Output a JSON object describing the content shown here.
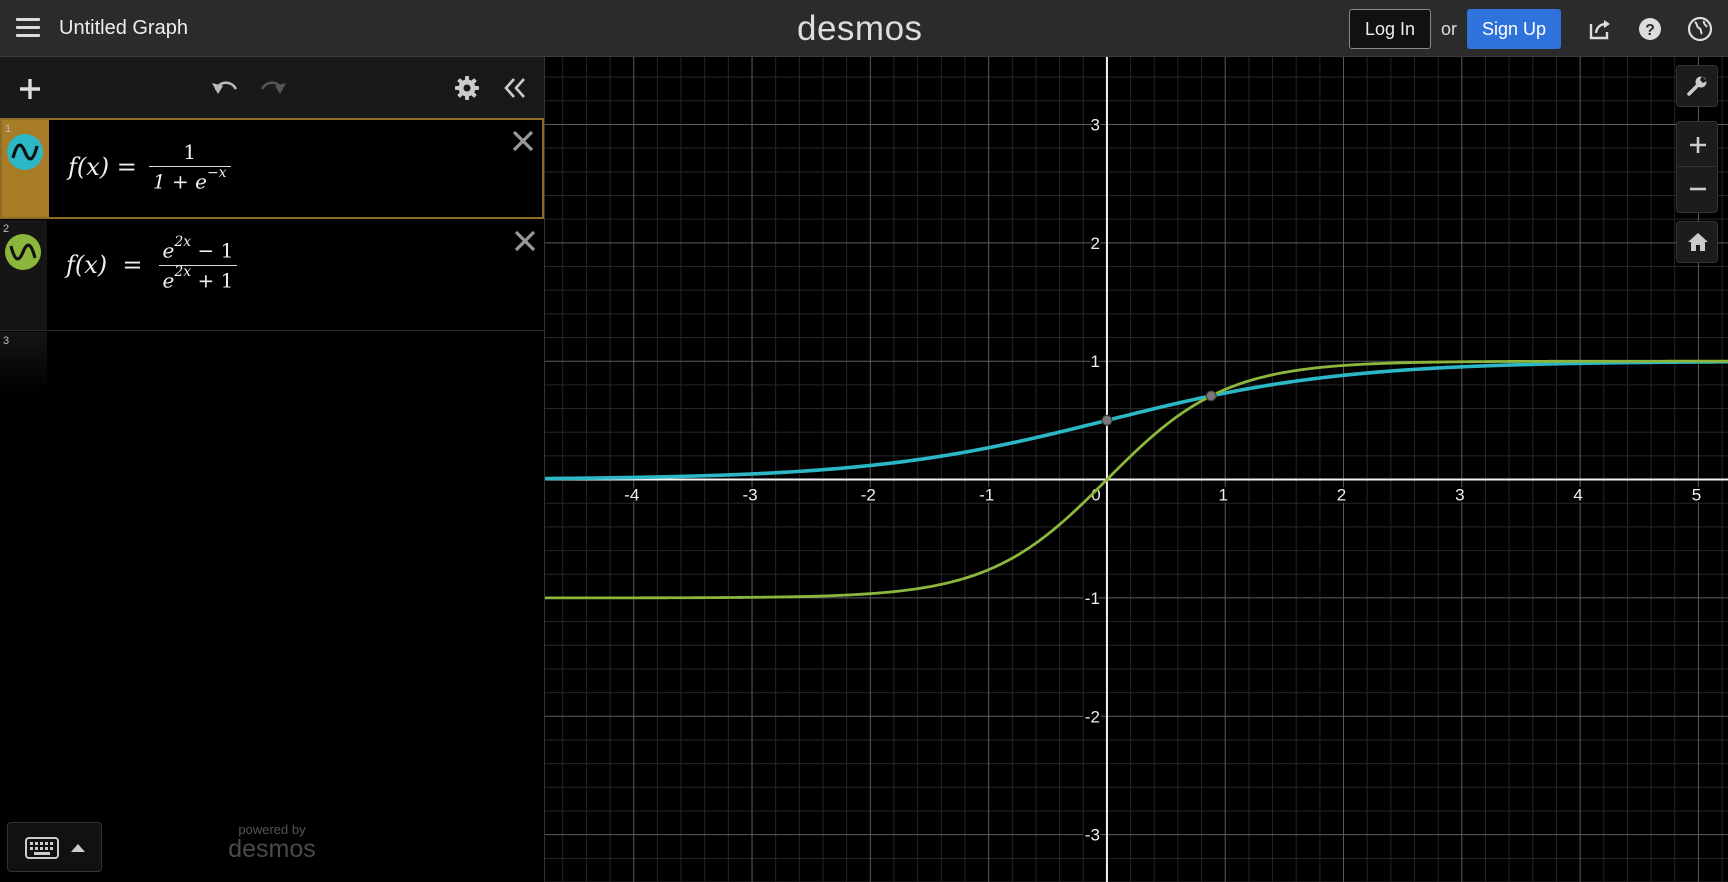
{
  "header": {
    "graph_title": "Untitled Graph",
    "logo_text": "desmos",
    "login_label": "Log In",
    "or_text": "or",
    "signup_label": "Sign Up"
  },
  "expressions": [
    {
      "index": "1",
      "color": "#2bb7c6",
      "lhs": "f(x) =",
      "frac_num": "1",
      "frac_den_base": "1 + e",
      "frac_den_sup": "−x"
    },
    {
      "index": "2",
      "color": "#8cb63c",
      "lhs": "f(x)  =",
      "frac_num_base": "e",
      "frac_num_sup": "2x",
      "frac_num_tail": " − 1",
      "frac_den_base": "e",
      "frac_den_sup": "2x",
      "frac_den_tail": " + 1"
    },
    {
      "index": "3"
    }
  ],
  "footer": {
    "powered_by": "powered by",
    "brand": "desmos"
  },
  "chart_data": {
    "type": "line",
    "title": "",
    "xlabel": "",
    "ylabel": "",
    "xlim": [
      -4.75,
      5.25
    ],
    "ylim": [
      -3.4,
      3.57
    ],
    "x_ticks": [
      "-4",
      "-3",
      "-2",
      "-1",
      "0",
      "1",
      "2",
      "3",
      "4",
      "5"
    ],
    "y_ticks": [
      "-3",
      "-2",
      "-1",
      "1",
      "2",
      "3"
    ],
    "grid": true,
    "series": [
      {
        "function": "sigmoid",
        "color": "#2bb7c6"
      },
      {
        "function": "tanh",
        "color": "#8cb63c"
      }
    ],
    "points": [
      {
        "x": 0,
        "y": 0.5
      },
      {
        "x": 0.881,
        "y": 0.707
      }
    ]
  }
}
